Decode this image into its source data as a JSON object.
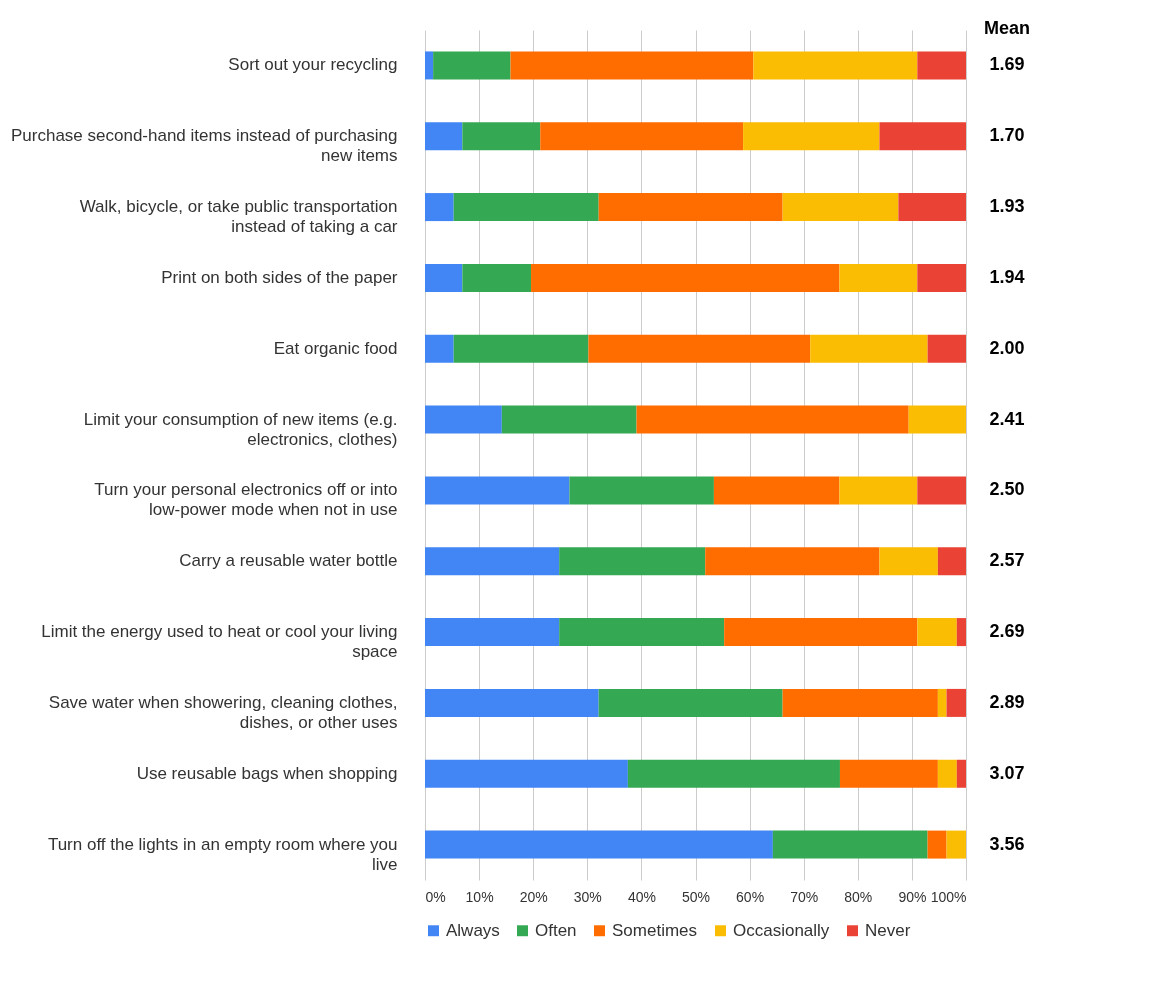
{
  "chart_data": {
    "type": "bar",
    "orientation": "horizontal",
    "stacked": true,
    "categories": [
      "Sort out your recycling",
      "Purchase second-hand items instead of purchasing new items",
      "Walk, bicycle, or take public transportation instead of taking a car",
      "Print on both sides of the paper",
      "Eat organic food",
      "Limit your consumption of new items (e.g. electronics, clothes)",
      "Turn your personal electronics off or into low-power mode when not in use",
      "Carry a reusable water bottle",
      "Limit the energy used to heat or cool your living space",
      "Save water when showering, cleaning clothes, dishes, or other uses",
      "Use reusable bags when shopping",
      "Turn off the lights in an empty room where you live"
    ],
    "series": [
      {
        "name": "Always",
        "color": "#4285f4",
        "values": [
          1.5,
          6.9,
          5.3,
          6.9,
          5.3,
          14.2,
          26.7,
          24.8,
          24.8,
          32.1,
          37.5,
          64.3
        ]
      },
      {
        "name": "Often",
        "color": "#34a853",
        "values": [
          14.3,
          14.4,
          26.8,
          12.7,
          24.9,
          24.9,
          26.7,
          27.0,
          30.5,
          34.0,
          39.2,
          28.6
        ]
      },
      {
        "name": "Sometimes",
        "color": "#ff6d01",
        "values": [
          44.9,
          37.5,
          34.0,
          57.0,
          41.0,
          50.3,
          23.2,
          32.2,
          35.7,
          28.7,
          18.1,
          3.5
        ]
      },
      {
        "name": "Occasionally",
        "color": "#fbbc04",
        "values": [
          30.3,
          25.2,
          21.4,
          14.4,
          21.7,
          10.6,
          14.4,
          10.8,
          7.3,
          1.6,
          3.5,
          3.6
        ]
      },
      {
        "name": "Never",
        "color": "#ea4335",
        "values": [
          9.0,
          16.0,
          12.5,
          9.0,
          7.1,
          0,
          9.0,
          5.2,
          1.7,
          3.6,
          1.7,
          0
        ]
      }
    ],
    "xlim": [
      0,
      100
    ],
    "xticks": [
      {
        "value": 0,
        "label": "0%"
      },
      {
        "value": 10,
        "label": "10%"
      },
      {
        "value": 20,
        "label": "20%"
      },
      {
        "value": 30,
        "label": "30%"
      },
      {
        "value": 40,
        "label": "40%"
      },
      {
        "value": 50,
        "label": "50%"
      },
      {
        "value": 60,
        "label": "60%"
      },
      {
        "value": 70,
        "label": "70%"
      },
      {
        "value": 80,
        "label": "80%"
      },
      {
        "value": 90,
        "label": "90%"
      },
      {
        "value": 100,
        "label": "100%"
      }
    ],
    "grid": "x",
    "legend": "bottom",
    "annotations": [
      "Mean",
      "1.69",
      "1.70",
      "1.93",
      "1.94",
      "2.00",
      "2.41",
      "2.50",
      "2.57",
      "2.69",
      "2.89",
      "3.07",
      "3.56"
    ]
  }
}
